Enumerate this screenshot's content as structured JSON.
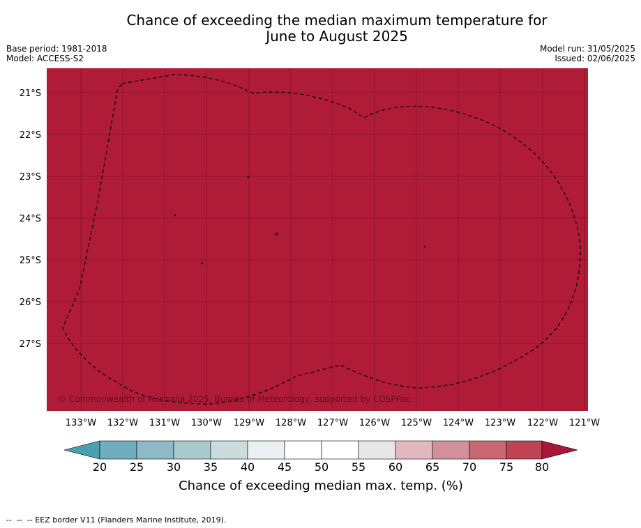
{
  "title": {
    "line1": "Chance of exceeding the median maximum temperature for",
    "line2": "June to August 2025"
  },
  "meta_left": {
    "base_period": "Base period: 1981-2018",
    "model": "Model: ACCESS-S2"
  },
  "meta_right": {
    "model_run": "Model run: 31/05/2025",
    "issued": "Issued: 02/06/2025"
  },
  "map": {
    "fill_color": "#b01c37",
    "probability_category": "80",
    "lat_labels": [
      "21°S",
      "22°S",
      "23°S",
      "24°S",
      "25°S",
      "26°S",
      "27°S"
    ],
    "lon_labels": [
      "133°W",
      "132°W",
      "131°W",
      "130°W",
      "129°W",
      "128°W",
      "127°W",
      "126°W",
      "125°W",
      "124°W",
      "123°W",
      "122°W",
      "121°W"
    ],
    "copyright": "© Commonwealth of Australia 2025, Bureau of Meteorology, supported by COSPPac"
  },
  "colorbar": {
    "ticks": [
      "20",
      "25",
      "30",
      "35",
      "40",
      "45",
      "50",
      "55",
      "60",
      "65",
      "70",
      "75",
      "80"
    ],
    "colors": [
      "#6fadbf",
      "#8dbac6",
      "#aac9cf",
      "#cbdcdf",
      "#eaf1f2",
      "#ffffff",
      "#ffffff",
      "#e8e8e8",
      "#e2b9bf",
      "#d4909a",
      "#c86672",
      "#be4453"
    ],
    "low_extend_color": "#4aa0b2",
    "high_extend_color": "#a8173a",
    "label": "Chance of exceeding median max. temp. (%)"
  },
  "footer": "--  --  -- EEZ border V11 (Flanders Marine Institute, 2019)."
}
